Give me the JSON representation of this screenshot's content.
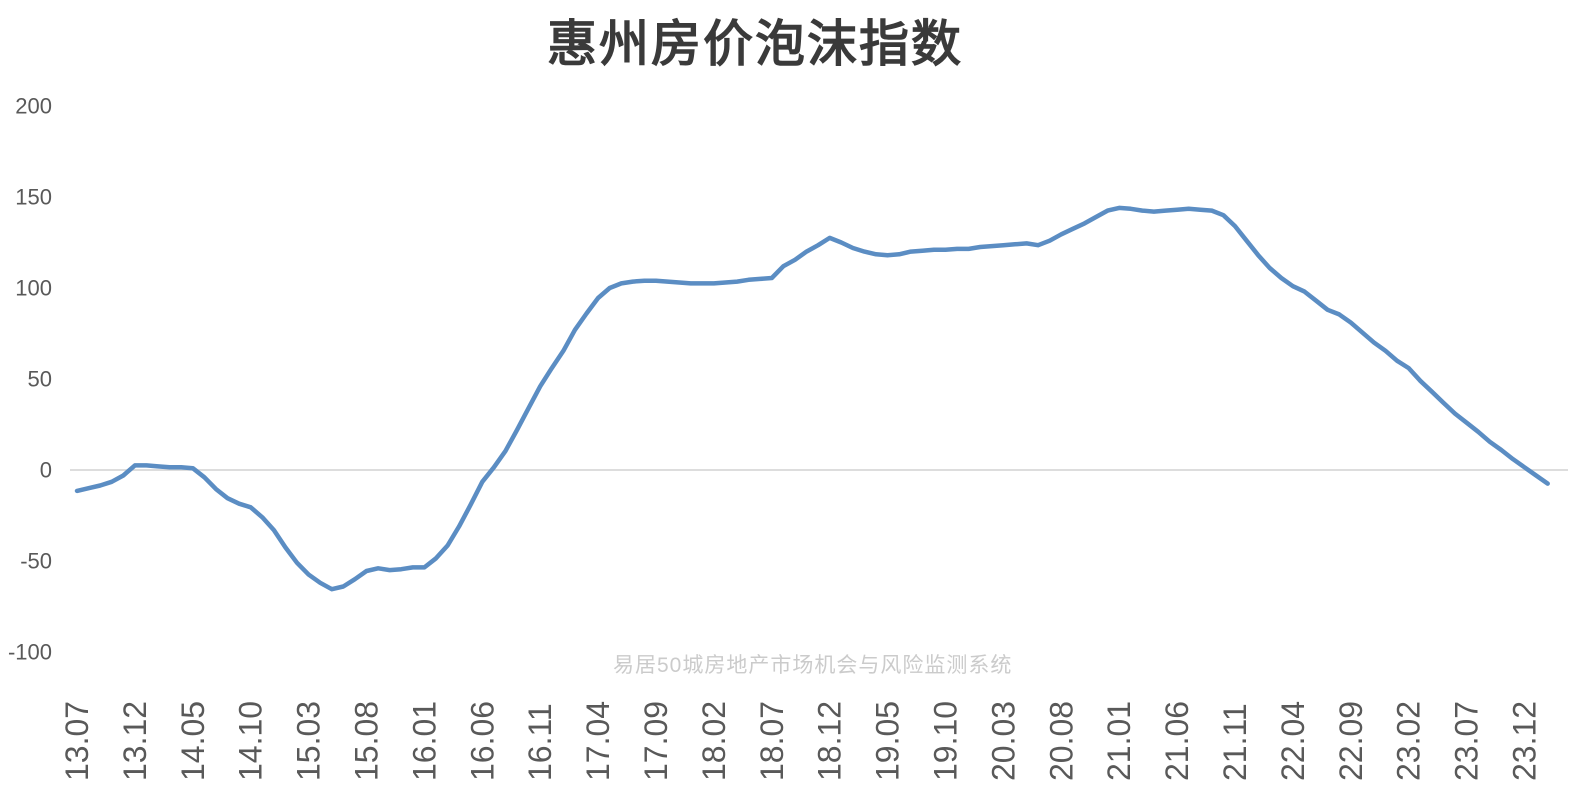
{
  "chart_data": {
    "type": "line",
    "title": "惠州房价泡沫指数",
    "watermark": "易居50城房地产市场机会与风险监测系统",
    "series_name": "惠州房价泡沫指数",
    "x_frequency": "monthly",
    "x_start": "13.07",
    "x_end": "24.02",
    "x_tick_labels": [
      "13.07",
      "13.12",
      "14.05",
      "14.10",
      "15.03",
      "15.08",
      "16.01",
      "16.06",
      "16.11",
      "17.04",
      "17.09",
      "18.02",
      "18.07",
      "18.12",
      "19.05",
      "19.10",
      "20.03",
      "20.08",
      "21.01",
      "21.06",
      "21.11",
      "22.04",
      "22.09",
      "23.02",
      "23.07",
      "23.12"
    ],
    "x_ticks_every_n_months": 5,
    "y_tick_labels": [
      200,
      150,
      100,
      50,
      0,
      -50,
      -100
    ],
    "ylim": [
      -100,
      200
    ],
    "grid": "zero-line-only",
    "legend": "none",
    "line_color": "#5b8dc3",
    "zero_line_color": "#d2d2d2",
    "values": [
      -11.5,
      -10,
      -8.5,
      -6.5,
      -3,
      2.5,
      2.5,
      2,
      1.5,
      1.5,
      1,
      -4,
      -10.5,
      -15.5,
      -18.5,
      -20.5,
      -26,
      -33,
      -42.5,
      -51,
      -57.5,
      -62,
      -65.5,
      -64,
      -60,
      -55.5,
      -54,
      -55,
      -54.5,
      -53.5,
      -53.5,
      -48.5,
      -41.5,
      -31,
      -19,
      -6.5,
      1.5,
      10.5,
      22,
      34,
      46,
      56,
      65.5,
      77,
      86,
      94.5,
      100,
      102.5,
      103.5,
      104,
      104,
      103.5,
      103,
      102.5,
      102.5,
      102.5,
      103,
      103.5,
      104.5,
      105,
      105.5,
      112,
      115.5,
      120,
      123.5,
      127.5,
      125,
      122,
      120,
      118.5,
      118,
      118.5,
      120,
      120.5,
      121,
      121,
      121.5,
      121.5,
      122.5,
      123,
      123.5,
      124,
      124.5,
      123.5,
      126,
      129.5,
      132.5,
      135.5,
      139,
      142.5,
      144,
      143.5,
      142.5,
      142,
      142.5,
      143,
      143.5,
      143,
      142.5,
      140,
      134,
      126,
      118,
      111,
      105.5,
      101,
      98,
      93,
      88,
      85.5,
      81,
      75.5,
      70,
      65.5,
      60,
      56,
      49,
      43,
      37,
      31,
      26,
      21,
      15.5,
      11,
      6,
      1.5,
      -3,
      -7.5
    ]
  }
}
